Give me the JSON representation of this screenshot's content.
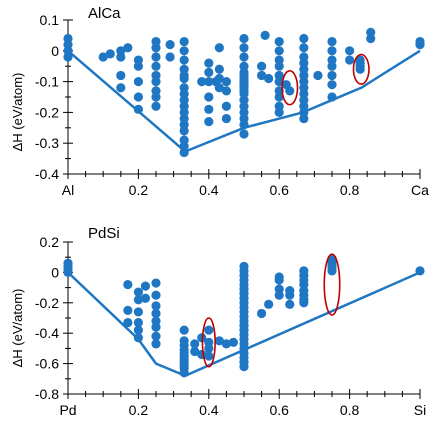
{
  "chart_data": [
    {
      "type": "scatter",
      "title": "AlCa",
      "ylabel": "ΔH (eV/atom)",
      "xlabel": "",
      "xlim": [
        0,
        1
      ],
      "ylim": [
        -0.4,
        0.1
      ],
      "x_ticks": [
        0,
        0.2,
        0.4,
        0.6,
        0.8,
        1
      ],
      "x_tick_labels": [
        "Al",
        "0.2",
        "0.4",
        "0.6",
        "0.8",
        "Ca"
      ],
      "y_ticks": [
        -0.4,
        -0.3,
        -0.2,
        -0.1,
        0,
        0.1
      ],
      "y_tick_labels": [
        "-0.4",
        "-0.3",
        "-0.2",
        "-0.1",
        "0",
        "0.1"
      ],
      "grid": false,
      "color": "#1f77c4",
      "highlight_color": "#c00000",
      "hull": {
        "x": [
          0,
          0.333,
          0.5,
          0.667,
          0.75,
          0.833,
          1
        ],
        "y": [
          0,
          -0.327,
          -0.25,
          -0.2,
          -0.16,
          -0.12,
          0
        ]
      },
      "points": {
        "x": [
          0,
          0,
          0,
          0,
          0.1,
          0.12,
          0.15,
          0.15,
          0.15,
          0.15,
          0.17,
          0.2,
          0.2,
          0.2,
          0.2,
          0.2,
          0.25,
          0.25,
          0.25,
          0.25,
          0.25,
          0.25,
          0.25,
          0.25,
          0.25,
          0.29,
          0.29,
          0.33,
          0.33,
          0.33,
          0.33,
          0.33,
          0.33,
          0.33,
          0.33,
          0.33,
          0.33,
          0.33,
          0.33,
          0.33,
          0.33,
          0.33,
          0.33,
          0.33,
          0.38,
          0.4,
          0.4,
          0.4,
          0.4,
          0.4,
          0.4,
          0.42,
          0.43,
          0.43,
          0.43,
          0.43,
          0.45,
          0.45,
          0.45,
          0.45,
          0.5,
          0.5,
          0.5,
          0.5,
          0.5,
          0.5,
          0.5,
          0.5,
          0.5,
          0.5,
          0.5,
          0.5,
          0.5,
          0.5,
          0.5,
          0.5,
          0.5,
          0.5,
          0.55,
          0.55,
          0.56,
          0.57,
          0.6,
          0.6,
          0.6,
          0.6,
          0.6,
          0.6,
          0.6,
          0.6,
          0.6,
          0.6,
          0.62,
          0.63,
          0.67,
          0.67,
          0.67,
          0.67,
          0.67,
          0.67,
          0.67,
          0.67,
          0.67,
          0.67,
          0.67,
          0.67,
          0.67,
          0.71,
          0.75,
          0.75,
          0.75,
          0.75,
          0.75,
          0.75,
          0.75,
          0.8,
          0.8,
          0.83,
          0.83,
          0.83,
          0.83,
          0.86,
          0.86,
          1,
          1
        ],
        "y": [
          0.04,
          0.02,
          0,
          -0.02,
          -0.02,
          -0.01,
          0,
          -0.02,
          -0.08,
          -0.12,
          0.01,
          -0.05,
          -0.1,
          -0.15,
          -0.19,
          -0.03,
          0.03,
          0.01,
          -0.02,
          -0.05,
          -0.08,
          -0.1,
          -0.13,
          -0.15,
          -0.18,
          0.02,
          -0.02,
          0.03,
          0,
          -0.03,
          -0.06,
          -0.09,
          -0.12,
          -0.14,
          -0.16,
          -0.18,
          -0.2,
          -0.22,
          -0.24,
          -0.26,
          -0.29,
          -0.31,
          -0.33,
          -0.08,
          -0.1,
          -0.04,
          -0.07,
          -0.1,
          -0.15,
          -0.19,
          -0.23,
          -0.1,
          0.01,
          -0.06,
          -0.09,
          -0.12,
          -0.22,
          -0.1,
          -0.13,
          -0.18,
          0.04,
          0.01,
          -0.02,
          -0.05,
          -0.08,
          -0.1,
          -0.12,
          -0.14,
          -0.16,
          -0.18,
          -0.2,
          -0.22,
          -0.24,
          -0.27,
          -0.07,
          -0.09,
          -0.11,
          -0.13,
          -0.05,
          -0.08,
          0.05,
          -0.09,
          0.03,
          0,
          -0.03,
          -0.05,
          -0.08,
          -0.1,
          -0.13,
          -0.15,
          -0.18,
          -0.2,
          -0.11,
          -0.13,
          0.04,
          0.01,
          -0.02,
          -0.04,
          -0.06,
          -0.08,
          -0.1,
          -0.12,
          -0.14,
          -0.16,
          -0.18,
          -0.2,
          -0.22,
          -0.08,
          0.03,
          0,
          -0.03,
          -0.05,
          -0.08,
          -0.11,
          -0.15,
          0,
          -0.03,
          -0.04,
          -0.06,
          -0.05,
          -0.03,
          0.06,
          0.04,
          0.03,
          0.02
        ]
      },
      "highlights": [
        {
          "cx": 0.63,
          "cy": -0.12,
          "rx": 0.022,
          "ry": 0.055
        },
        {
          "cx": 0.833,
          "cy": -0.06,
          "rx": 0.022,
          "ry": 0.048
        }
      ]
    },
    {
      "type": "scatter",
      "title": "PdSi",
      "ylabel": "ΔH (eV/atom)",
      "xlabel": "",
      "xlim": [
        0,
        1
      ],
      "ylim": [
        -0.8,
        0.2
      ],
      "x_ticks": [
        0,
        0.2,
        0.4,
        0.6,
        0.8,
        1
      ],
      "x_tick_labels": [
        "Pd",
        "0.2",
        "0.4",
        "0.6",
        "0.8",
        "Si"
      ],
      "y_ticks": [
        -0.8,
        -0.6,
        -0.4,
        -0.2,
        0,
        0.2
      ],
      "y_tick_labels": [
        "-0.8",
        "-0.6",
        "-0.4",
        "-0.2",
        "0",
        "0.2"
      ],
      "grid": false,
      "color": "#1f77c4",
      "highlight_color": "#c00000",
      "hull": {
        "x": [
          0,
          0.2,
          0.25,
          0.333,
          1
        ],
        "y": [
          0,
          -0.44,
          -0.6,
          -0.68,
          0
        ]
      },
      "points": {
        "x": [
          0,
          0,
          0,
          0,
          0.17,
          0.17,
          0.17,
          0.2,
          0.2,
          0.2,
          0.2,
          0.2,
          0.2,
          0.22,
          0.22,
          0.25,
          0.25,
          0.25,
          0.25,
          0.25,
          0.25,
          0.25,
          0.25,
          0.33,
          0.33,
          0.33,
          0.33,
          0.33,
          0.33,
          0.33,
          0.33,
          0.33,
          0.33,
          0.33,
          0.36,
          0.36,
          0.38,
          0.38,
          0.4,
          0.4,
          0.4,
          0.4,
          0.43,
          0.45,
          0.47,
          0.5,
          0.5,
          0.5,
          0.5,
          0.5,
          0.5,
          0.5,
          0.5,
          0.5,
          0.5,
          0.5,
          0.5,
          0.5,
          0.5,
          0.5,
          0.5,
          0.5,
          0.5,
          0.5,
          0.5,
          0.5,
          0.5,
          0.5,
          0.55,
          0.57,
          0.6,
          0.6,
          0.6,
          0.6,
          0.63,
          0.63,
          0.63,
          0.67,
          0.67,
          0.67,
          0.67,
          0.67,
          0.67,
          0.67,
          0.67,
          0.75,
          0.75,
          0.75,
          0.75,
          0.75,
          1
        ],
        "y": [
          0.06,
          0.04,
          0.02,
          0,
          -0.08,
          -0.25,
          -0.33,
          -0.13,
          -0.18,
          -0.26,
          -0.33,
          -0.38,
          -0.43,
          -0.09,
          -0.17,
          -0.07,
          -0.15,
          -0.22,
          -0.27,
          -0.32,
          -0.36,
          -0.42,
          -0.47,
          -0.38,
          -0.45,
          -0.48,
          -0.51,
          -0.53,
          -0.55,
          -0.57,
          -0.59,
          -0.61,
          -0.63,
          -0.66,
          -0.47,
          -0.52,
          -0.43,
          -0.54,
          -0.38,
          -0.46,
          -0.5,
          -0.55,
          -0.45,
          -0.47,
          -0.46,
          0.04,
          0.01,
          -0.02,
          -0.05,
          -0.08,
          -0.11,
          -0.14,
          -0.17,
          -0.2,
          -0.23,
          -0.26,
          -0.29,
          -0.32,
          -0.35,
          -0.38,
          -0.41,
          -0.44,
          -0.47,
          -0.5,
          -0.53,
          -0.56,
          -0.59,
          -0.62,
          -0.27,
          -0.21,
          -0.03,
          -0.05,
          -0.11,
          -0.15,
          -0.12,
          -0.15,
          -0.21,
          0.01,
          -0.02,
          -0.05,
          -0.08,
          -0.12,
          -0.15,
          -0.18,
          -0.2,
          0.09,
          0.07,
          0.05,
          0.03,
          0.01,
          0.01
        ]
      },
      "highlights": [
        {
          "cx": 0.4,
          "cy": -0.46,
          "rx": 0.018,
          "ry": 0.16
        },
        {
          "cx": 0.75,
          "cy": -0.08,
          "rx": 0.022,
          "ry": 0.2
        }
      ]
    }
  ]
}
